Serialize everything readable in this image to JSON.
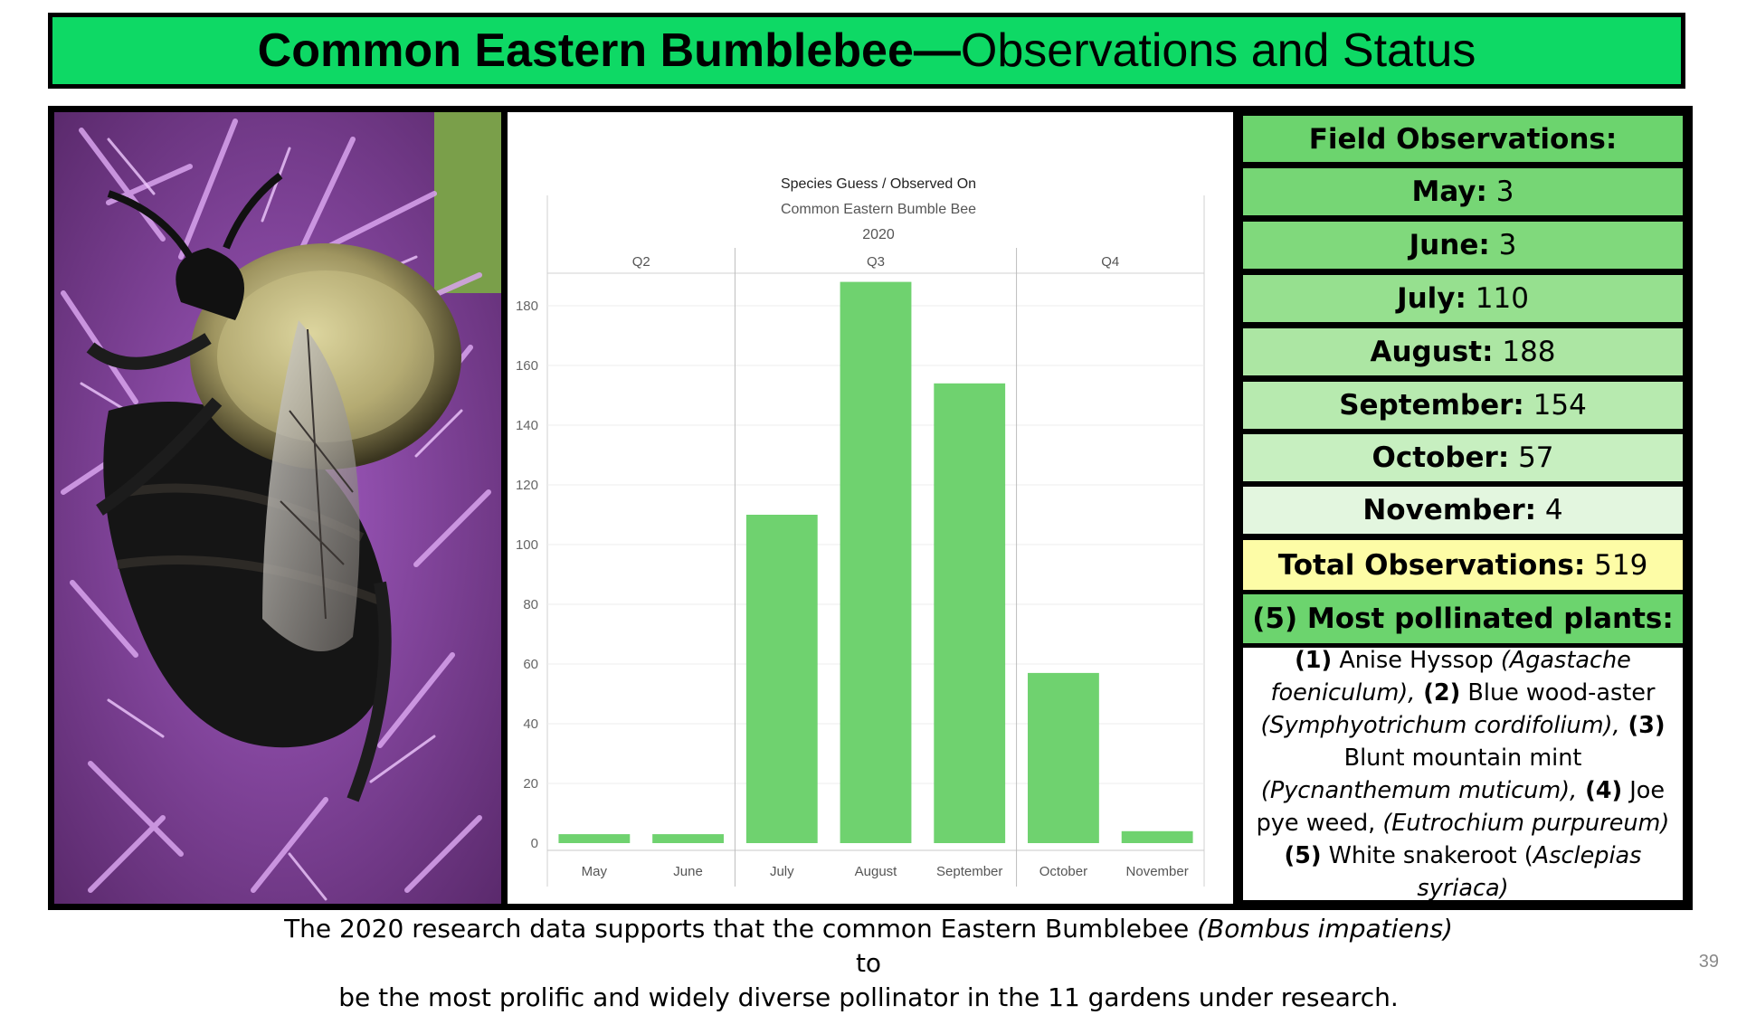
{
  "title": {
    "bold": "Common Eastern Bumblebee—",
    "rest": "Observations and Status"
  },
  "chart_data": {
    "type": "bar",
    "title": "Species Guess / Observed On",
    "subtitle": "Common Eastern Bumble Bee",
    "year": "2020",
    "quarters": [
      {
        "label": "Q2",
        "months": [
          "May",
          "June"
        ]
      },
      {
        "label": "Q3",
        "months": [
          "July",
          "August",
          "September"
        ]
      },
      {
        "label": "Q4",
        "months": [
          "October",
          "November"
        ]
      }
    ],
    "categories": [
      "May",
      "June",
      "July",
      "August",
      "September",
      "October",
      "November"
    ],
    "values": [
      3,
      3,
      110,
      188,
      154,
      57,
      4
    ],
    "ylim": [
      0,
      200
    ],
    "yticks": [
      0,
      20,
      40,
      60,
      80,
      100,
      120,
      140,
      160,
      180
    ],
    "bar_color": "#6fd26f",
    "grid": true
  },
  "observations": {
    "header": "Field Observations:",
    "months": [
      {
        "label": "May:",
        "value": "3",
        "color": "#76d675"
      },
      {
        "label": "June:",
        "value": "3",
        "color": "#80d97c"
      },
      {
        "label": "July:",
        "value": "110",
        "color": "#96e08f"
      },
      {
        "label": "August:",
        "value": "188",
        "color": "#ace6a3"
      },
      {
        "label": "September:",
        "value": "154",
        "color": "#b7eaaf"
      },
      {
        "label": "October:",
        "value": "57",
        "color": "#c7efc0"
      },
      {
        "label": "November:",
        "value": "4",
        "color": "#e3f6df"
      }
    ],
    "total_label": "Total Observations:",
    "total_value": "519",
    "total_color": "#fdfca6",
    "plants_header": "(5) Most pollinated plants:",
    "header_color": "#6cd46e",
    "plants": [
      {
        "num": "(1)",
        "name": " Anise Hyssop ",
        "latin": "(Agastache foeniculum),"
      },
      {
        "num": " (2)",
        "name": " Blue wood-aster ",
        "latin": "(Symphyotrichum cordifolium),"
      },
      {
        "num": " (3)",
        "name": " Blunt mountain mint ",
        "latin": "(Pycnanthemum muticum),"
      },
      {
        "num": " (4)",
        "name": " Joe pye weed, ",
        "latin": "(Eutrochium purpureum)"
      },
      {
        "num": " (5)",
        "name": " White snakeroot (",
        "latin": "Asclepias syriaca)"
      }
    ]
  },
  "footer": {
    "line1_a": "The 2020 research data supports that the common Eastern Bumblebee ",
    "line1_italic": "(Bombus impatiens)",
    "line1_b": " to",
    "line2": "be the most prolific and widely diverse pollinator in the 11 gardens under research."
  },
  "page_number": "39"
}
